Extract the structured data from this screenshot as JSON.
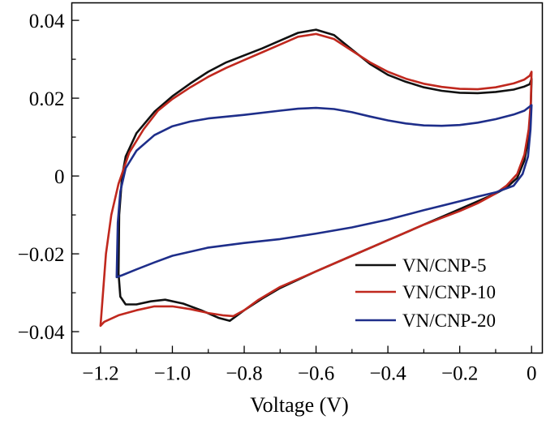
{
  "chart_data": {
    "type": "line",
    "title": "",
    "xlabel": "Voltage (V)",
    "ylabel": "",
    "xlim": [
      -1.28,
      0.03
    ],
    "ylim": [
      -0.0455,
      0.0445
    ],
    "x_ticks": [
      -1.2,
      -1.0,
      -0.8,
      -0.6,
      -0.4,
      -0.2,
      0
    ],
    "x_tick_labels": [
      "−1.2",
      "−1.0",
      "−0.8",
      "−0.6",
      "−0.4",
      "−0.2",
      "0"
    ],
    "y_ticks": [
      0.04,
      0.02,
      0,
      -0.02,
      -0.04
    ],
    "y_tick_labels": [
      "0.04",
      "0.02",
      "0",
      "−0.02",
      "−0.04"
    ],
    "grid": false,
    "legend_position": "bottom-right",
    "series": [
      {
        "name": "VN/CNP-5",
        "color": "#111111",
        "points": [
          [
            -1.15,
            -0.025
          ],
          [
            -1.148,
            -0.01
          ],
          [
            -1.14,
            0.0
          ],
          [
            -1.13,
            0.005
          ],
          [
            -1.1,
            0.011
          ],
          [
            -1.05,
            0.0165
          ],
          [
            -1.0,
            0.0205
          ],
          [
            -0.95,
            0.0238
          ],
          [
            -0.9,
            0.0268
          ],
          [
            -0.85,
            0.0292
          ],
          [
            -0.8,
            0.031
          ],
          [
            -0.75,
            0.0328
          ],
          [
            -0.7,
            0.0348
          ],
          [
            -0.65,
            0.0368
          ],
          [
            -0.6,
            0.0376
          ],
          [
            -0.55,
            0.0362
          ],
          [
            -0.5,
            0.0325
          ],
          [
            -0.45,
            0.0288
          ],
          [
            -0.4,
            0.026
          ],
          [
            -0.35,
            0.0242
          ],
          [
            -0.3,
            0.0228
          ],
          [
            -0.25,
            0.0219
          ],
          [
            -0.2,
            0.0214
          ],
          [
            -0.15,
            0.0213
          ],
          [
            -0.1,
            0.0216
          ],
          [
            -0.05,
            0.0222
          ],
          [
            -0.02,
            0.023
          ],
          [
            -0.005,
            0.0236
          ],
          [
            0.0,
            0.025
          ],
          [
            -0.002,
            0.018
          ],
          [
            -0.008,
            0.01
          ],
          [
            -0.02,
            0.004
          ],
          [
            -0.04,
            -0.0005
          ],
          [
            -0.07,
            -0.003
          ],
          [
            -0.1,
            -0.0045
          ],
          [
            -0.15,
            -0.0065
          ],
          [
            -0.2,
            -0.0085
          ],
          [
            -0.3,
            -0.0125
          ],
          [
            -0.4,
            -0.0165
          ],
          [
            -0.5,
            -0.0205
          ],
          [
            -0.6,
            -0.0245
          ],
          [
            -0.7,
            -0.0288
          ],
          [
            -0.75,
            -0.0315
          ],
          [
            -0.8,
            -0.0345
          ],
          [
            -0.84,
            -0.0372
          ],
          [
            -0.87,
            -0.0365
          ],
          [
            -0.92,
            -0.0345
          ],
          [
            -0.97,
            -0.0328
          ],
          [
            -1.02,
            -0.0318
          ],
          [
            -1.06,
            -0.0322
          ],
          [
            -1.1,
            -0.033
          ],
          [
            -1.13,
            -0.033
          ],
          [
            -1.145,
            -0.031
          ],
          [
            -1.15,
            -0.025
          ]
        ]
      },
      {
        "name": "VN/CNP-10",
        "color": "#c0281e",
        "points": [
          [
            -1.2,
            -0.0385
          ],
          [
            -1.185,
            -0.02
          ],
          [
            -1.17,
            -0.01
          ],
          [
            -1.15,
            -0.002
          ],
          [
            -1.12,
            0.006
          ],
          [
            -1.08,
            0.012
          ],
          [
            -1.04,
            0.0168
          ],
          [
            -1.0,
            0.0198
          ],
          [
            -0.95,
            0.0228
          ],
          [
            -0.9,
            0.0255
          ],
          [
            -0.85,
            0.0278
          ],
          [
            -0.8,
            0.0298
          ],
          [
            -0.75,
            0.0318
          ],
          [
            -0.7,
            0.0338
          ],
          [
            -0.65,
            0.0358
          ],
          [
            -0.6,
            0.0365
          ],
          [
            -0.55,
            0.0352
          ],
          [
            -0.5,
            0.0322
          ],
          [
            -0.45,
            0.0292
          ],
          [
            -0.4,
            0.0268
          ],
          [
            -0.35,
            0.025
          ],
          [
            -0.3,
            0.0237
          ],
          [
            -0.25,
            0.0229
          ],
          [
            -0.2,
            0.0224
          ],
          [
            -0.15,
            0.0223
          ],
          [
            -0.1,
            0.0228
          ],
          [
            -0.05,
            0.0238
          ],
          [
            -0.02,
            0.0248
          ],
          [
            -0.005,
            0.0258
          ],
          [
            0.0,
            0.0268
          ],
          [
            -0.002,
            0.019
          ],
          [
            -0.008,
            0.012
          ],
          [
            -0.02,
            0.0055
          ],
          [
            -0.04,
            0.0005
          ],
          [
            -0.07,
            -0.0025
          ],
          [
            -0.1,
            -0.0045
          ],
          [
            -0.15,
            -0.007
          ],
          [
            -0.2,
            -0.009
          ],
          [
            -0.3,
            -0.0125
          ],
          [
            -0.4,
            -0.0165
          ],
          [
            -0.5,
            -0.0205
          ],
          [
            -0.6,
            -0.0245
          ],
          [
            -0.7,
            -0.0285
          ],
          [
            -0.76,
            -0.0318
          ],
          [
            -0.8,
            -0.0345
          ],
          [
            -0.83,
            -0.036
          ],
          [
            -0.86,
            -0.0358
          ],
          [
            -0.9,
            -0.0352
          ],
          [
            -0.95,
            -0.0342
          ],
          [
            -1.0,
            -0.0335
          ],
          [
            -1.05,
            -0.0335
          ],
          [
            -1.1,
            -0.0345
          ],
          [
            -1.15,
            -0.0358
          ],
          [
            -1.19,
            -0.0375
          ],
          [
            -1.2,
            -0.0385
          ]
        ]
      },
      {
        "name": "VN/CNP-20",
        "color": "#1e2e8a",
        "points": [
          [
            -1.155,
            -0.026
          ],
          [
            -1.152,
            -0.012
          ],
          [
            -1.145,
            -0.004
          ],
          [
            -1.13,
            0.002
          ],
          [
            -1.1,
            0.0065
          ],
          [
            -1.05,
            0.0105
          ],
          [
            -1.0,
            0.0128
          ],
          [
            -0.95,
            0.014
          ],
          [
            -0.9,
            0.0148
          ],
          [
            -0.8,
            0.0157
          ],
          [
            -0.7,
            0.0168
          ],
          [
            -0.65,
            0.0173
          ],
          [
            -0.6,
            0.0175
          ],
          [
            -0.55,
            0.0172
          ],
          [
            -0.5,
            0.0164
          ],
          [
            -0.45,
            0.0153
          ],
          [
            -0.4,
            0.0143
          ],
          [
            -0.35,
            0.0135
          ],
          [
            -0.3,
            0.013
          ],
          [
            -0.25,
            0.0129
          ],
          [
            -0.2,
            0.0131
          ],
          [
            -0.15,
            0.0137
          ],
          [
            -0.1,
            0.0146
          ],
          [
            -0.05,
            0.0158
          ],
          [
            -0.02,
            0.0168
          ],
          [
            0.0,
            0.0182
          ],
          [
            -0.003,
            0.012
          ],
          [
            -0.01,
            0.005
          ],
          [
            -0.025,
            0.0005
          ],
          [
            -0.05,
            -0.0025
          ],
          [
            -0.1,
            -0.0042
          ],
          [
            -0.15,
            -0.0053
          ],
          [
            -0.2,
            -0.0065
          ],
          [
            -0.3,
            -0.0088
          ],
          [
            -0.4,
            -0.0112
          ],
          [
            -0.5,
            -0.0132
          ],
          [
            -0.6,
            -0.0148
          ],
          [
            -0.7,
            -0.0162
          ],
          [
            -0.8,
            -0.0172
          ],
          [
            -0.9,
            -0.0184
          ],
          [
            -1.0,
            -0.0205
          ],
          [
            -1.05,
            -0.0222
          ],
          [
            -1.1,
            -0.024
          ],
          [
            -1.14,
            -0.0255
          ],
          [
            -1.155,
            -0.026
          ]
        ]
      }
    ]
  }
}
